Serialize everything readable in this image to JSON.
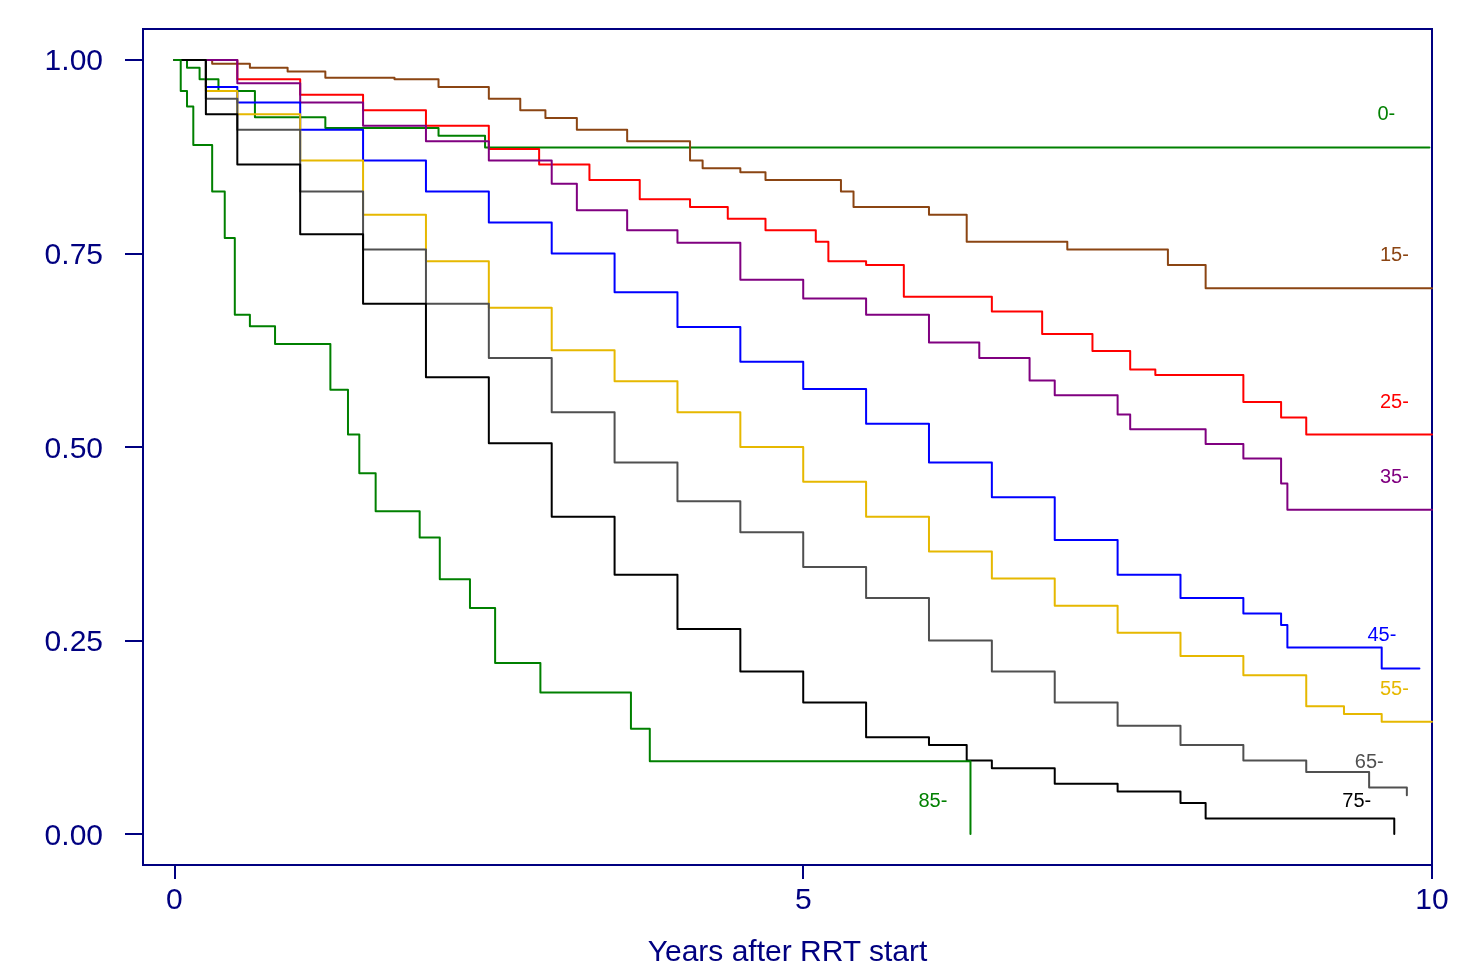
{
  "chart_data": {
    "type": "step",
    "xlabel": "Years after RRT start",
    "xlim": [
      -0.25,
      10
    ],
    "ylim": [
      -0.04,
      1.04
    ],
    "xticks": [
      0,
      5,
      10
    ],
    "yticks": [
      {
        "value": 0,
        "label": "0.00"
      },
      {
        "value": 0.25,
        "label": "0.25"
      },
      {
        "value": 0.5,
        "label": "0.50"
      },
      {
        "value": 0.75,
        "label": "0.75"
      },
      {
        "value": 1,
        "label": "1.00"
      }
    ],
    "grid": false,
    "legend": false,
    "marker": "none",
    "line_style": "solid",
    "series": [
      {
        "name": "0-",
        "color": "#008000",
        "x": [
          0,
          0.1,
          0.2,
          0.35,
          0.64,
          1.2,
          2.1,
          2.47,
          9.98
        ],
        "values": [
          1,
          0.99,
          0.975,
          0.96,
          0.926,
          0.912,
          0.902,
          0.887,
          0.887
        ]
      },
      {
        "name": "15-",
        "color": "#8b4513",
        "x": [
          0,
          0.3,
          0.6,
          0.9,
          1.2,
          1.75,
          2.1,
          2.5,
          2.75,
          2.95,
          3.2,
          3.6,
          4.1,
          4.2,
          4.5,
          4.7,
          5.3,
          5.4,
          6.0,
          6.3,
          7.1,
          7.9,
          8.2,
          10
        ],
        "values": [
          1,
          0.995,
          0.99,
          0.985,
          0.977,
          0.975,
          0.965,
          0.95,
          0.935,
          0.925,
          0.91,
          0.895,
          0.87,
          0.86,
          0.855,
          0.845,
          0.83,
          0.81,
          0.8,
          0.765,
          0.755,
          0.735,
          0.705,
          0.705
        ]
      },
      {
        "name": "25-",
        "color": "#ff0000",
        "x": [
          0,
          0.5,
          1.0,
          1.5,
          2.0,
          2.5,
          2.9,
          3.3,
          3.7,
          4.1,
          4.4,
          4.7,
          5.1,
          5.2,
          5.5,
          5.8,
          6.5,
          6.9,
          7.3,
          7.6,
          7.8,
          8.5,
          8.8,
          9.0,
          10
        ],
        "values": [
          1,
          0.975,
          0.955,
          0.935,
          0.915,
          0.885,
          0.865,
          0.845,
          0.82,
          0.81,
          0.795,
          0.78,
          0.765,
          0.74,
          0.735,
          0.694,
          0.675,
          0.646,
          0.624,
          0.6,
          0.593,
          0.558,
          0.538,
          0.516,
          0.516
        ]
      },
      {
        "name": "35-",
        "color": "#800080",
        "x": [
          0,
          0.5,
          1.0,
          1.5,
          2.0,
          2.5,
          3.0,
          3.2,
          3.6,
          4.0,
          4.5,
          5.0,
          5.5,
          6.0,
          6.4,
          6.8,
          7.0,
          7.5,
          7.6,
          8.2,
          8.5,
          8.8,
          8.85,
          10
        ],
        "values": [
          1,
          0.97,
          0.945,
          0.915,
          0.895,
          0.87,
          0.84,
          0.806,
          0.78,
          0.764,
          0.716,
          0.692,
          0.671,
          0.635,
          0.615,
          0.586,
          0.567,
          0.542,
          0.523,
          0.504,
          0.485,
          0.453,
          0.419,
          0.419
        ]
      },
      {
        "name": "45-",
        "color": "#0000ff",
        "x": [
          0,
          0.25,
          0.5,
          1.0,
          1.5,
          2.0,
          2.5,
          3.0,
          3.5,
          4.0,
          4.5,
          5.0,
          5.5,
          6.0,
          6.5,
          7.0,
          7.5,
          8.0,
          8.5,
          8.8,
          8.85,
          9.6,
          9.9
        ],
        "values": [
          1,
          0.965,
          0.945,
          0.91,
          0.87,
          0.83,
          0.79,
          0.75,
          0.7,
          0.655,
          0.61,
          0.575,
          0.53,
          0.48,
          0.435,
          0.38,
          0.335,
          0.305,
          0.285,
          0.27,
          0.241,
          0.214,
          0.214
        ]
      },
      {
        "name": "55-",
        "color": "#e6b800",
        "x": [
          0,
          0.25,
          0.5,
          1.0,
          1.5,
          2.0,
          2.5,
          3.0,
          3.5,
          4.0,
          4.5,
          5.0,
          5.5,
          6.0,
          6.5,
          7.0,
          7.5,
          8.0,
          8.5,
          9.0,
          9.3,
          9.6,
          10
        ],
        "values": [
          1,
          0.96,
          0.93,
          0.87,
          0.8,
          0.74,
          0.68,
          0.625,
          0.585,
          0.545,
          0.5,
          0.455,
          0.41,
          0.365,
          0.33,
          0.295,
          0.26,
          0.23,
          0.205,
          0.165,
          0.155,
          0.145,
          0.145
        ]
      },
      {
        "name": "65-",
        "color": "#505050",
        "x": [
          0,
          0.25,
          0.5,
          1.0,
          1.5,
          2.0,
          2.5,
          3.0,
          3.5,
          4.0,
          4.5,
          5.0,
          5.5,
          6.0,
          6.5,
          7.0,
          7.5,
          8.0,
          8.5,
          9.0,
          9.5,
          9.8
        ],
        "values": [
          1,
          0.95,
          0.91,
          0.83,
          0.755,
          0.685,
          0.615,
          0.545,
          0.48,
          0.43,
          0.39,
          0.345,
          0.305,
          0.25,
          0.21,
          0.17,
          0.14,
          0.115,
          0.095,
          0.08,
          0.06,
          0.05
        ]
      },
      {
        "name": "75-",
        "color": "#000000",
        "x": [
          0,
          0.25,
          0.5,
          1.0,
          1.5,
          2.0,
          2.5,
          3.0,
          3.5,
          4.0,
          4.5,
          5.0,
          5.5,
          6.0,
          6.3,
          6.5,
          7.0,
          7.5,
          8.0,
          8.2,
          9.7
        ],
        "values": [
          1,
          0.93,
          0.865,
          0.775,
          0.685,
          0.59,
          0.505,
          0.41,
          0.335,
          0.265,
          0.21,
          0.17,
          0.125,
          0.115,
          0.095,
          0.085,
          0.065,
          0.055,
          0.04,
          0.02,
          0
        ]
      },
      {
        "name": "85-",
        "color": "#008000",
        "x": [
          0,
          0.05,
          0.1,
          0.15,
          0.3,
          0.4,
          0.48,
          0.6,
          0.8,
          1.24,
          1.38,
          1.47,
          1.6,
          1.95,
          2.11,
          2.35,
          2.55,
          2.91,
          3.63,
          3.78,
          6.33
        ],
        "values": [
          1,
          0.96,
          0.94,
          0.89,
          0.83,
          0.77,
          0.671,
          0.656,
          0.633,
          0.574,
          0.516,
          0.466,
          0.417,
          0.383,
          0.329,
          0.292,
          0.221,
          0.183,
          0.136,
          0.094,
          0
        ]
      }
    ]
  }
}
